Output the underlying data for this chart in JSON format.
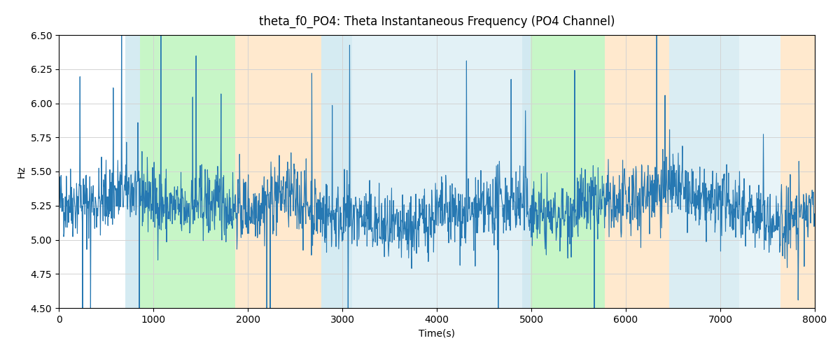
{
  "title": "theta_f0_PO4: Theta Instantaneous Frequency (PO4 Channel)",
  "xlabel": "Time(s)",
  "ylabel": "Hz",
  "xlim": [
    0,
    8000
  ],
  "ylim": [
    4.5,
    6.5
  ],
  "yticks": [
    4.5,
    4.75,
    5.0,
    5.25,
    5.5,
    5.75,
    6.0,
    6.25,
    6.5
  ],
  "xticks": [
    0,
    1000,
    2000,
    3000,
    4000,
    5000,
    6000,
    7000,
    8000
  ],
  "line_color": "#2678b2",
  "line_width": 0.8,
  "background_color": "#ffffff",
  "shaded_regions": [
    {
      "xmin": 700,
      "xmax": 860,
      "color": "#add8e6",
      "alpha": 0.5
    },
    {
      "xmin": 860,
      "xmax": 1870,
      "color": "#90ee90",
      "alpha": 0.5
    },
    {
      "xmin": 1870,
      "xmax": 2780,
      "color": "#ffd59f",
      "alpha": 0.5
    },
    {
      "xmin": 2780,
      "xmax": 3100,
      "color": "#add8e6",
      "alpha": 0.5
    },
    {
      "xmin": 3100,
      "xmax": 4900,
      "color": "#add8e6",
      "alpha": 0.35
    },
    {
      "xmin": 4900,
      "xmax": 4990,
      "color": "#add8e6",
      "alpha": 0.55
    },
    {
      "xmin": 4990,
      "xmax": 5780,
      "color": "#90ee90",
      "alpha": 0.5
    },
    {
      "xmin": 5780,
      "xmax": 6460,
      "color": "#ffd59f",
      "alpha": 0.5
    },
    {
      "xmin": 6460,
      "xmax": 7200,
      "color": "#add8e6",
      "alpha": 0.45
    },
    {
      "xmin": 7200,
      "xmax": 7640,
      "color": "#add8e6",
      "alpha": 0.28
    },
    {
      "xmin": 7640,
      "xmax": 8000,
      "color": "#ffd59f",
      "alpha": 0.5
    }
  ],
  "seed": 42,
  "n_points": 2000,
  "base_freq": 5.22,
  "noise_std": 0.13,
  "spike_probability": 0.012,
  "spike_magnitude": 0.65,
  "figsize": [
    12.0,
    5.0
  ],
  "dpi": 100
}
